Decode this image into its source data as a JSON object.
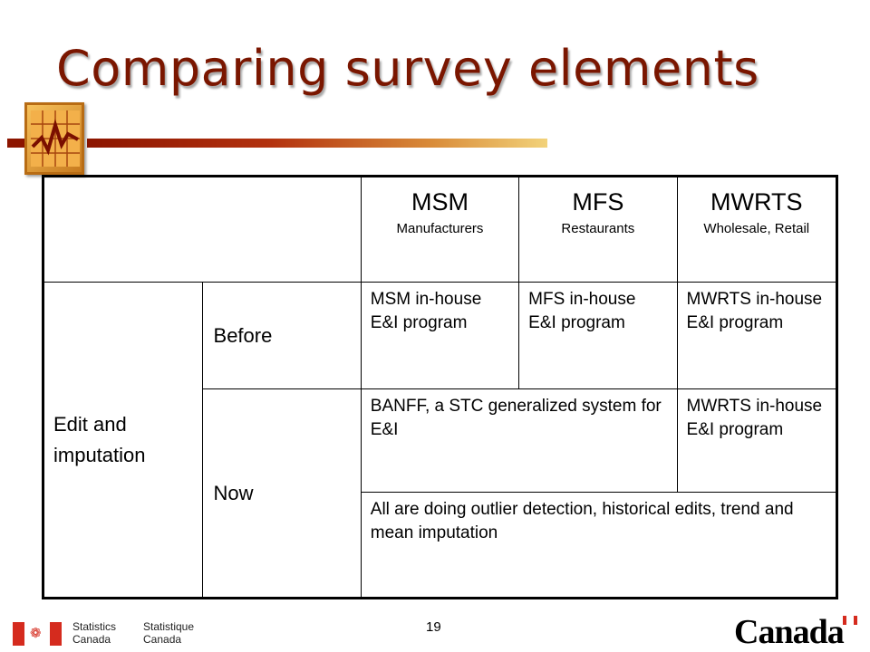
{
  "title": "Comparing survey elements",
  "table": {
    "headers": [
      {
        "big": "MSM",
        "small": "Manufacturers"
      },
      {
        "big": "MFS",
        "small": "Restaurants"
      },
      {
        "big": "MWRTS",
        "small": "Wholesale, Retail"
      }
    ],
    "row_group_label": "Edit and imputation",
    "before_label": "Before",
    "now_label": "Now",
    "before_cells": [
      "MSM in-house E&I program",
      "MFS in-house E&I program",
      "MWRTS in-house E&I program"
    ],
    "now_cells": {
      "banff": "BANFF, a STC generalized system for E&I",
      "mwrts": "MWRTS in-house E&I program",
      "all": "All are doing outlier detection, historical edits, trend and mean imputation"
    }
  },
  "footer": {
    "org_en_1": "Statistics",
    "org_en_2": "Canada",
    "org_fr_1": "Statistique",
    "org_fr_2": "Canada",
    "page_number": "19",
    "wordmark": "Canada"
  },
  "colors": {
    "title": "#7a1600",
    "accent_dark": "#8c1500",
    "flag_red": "#d52b1e"
  }
}
